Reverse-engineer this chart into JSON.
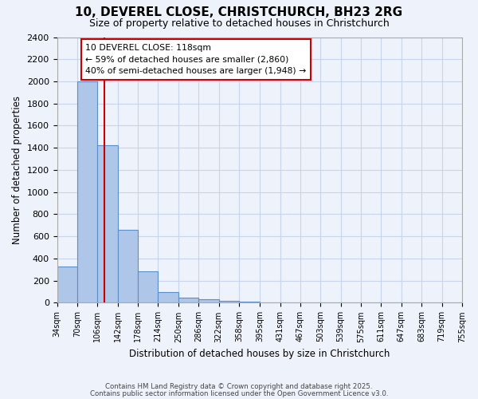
{
  "title": "10, DEVEREL CLOSE, CHRISTCHURCH, BH23 2RG",
  "subtitle": "Size of property relative to detached houses in Christchurch",
  "bar_values": [
    325,
    2000,
    1420,
    660,
    285,
    100,
    45,
    30,
    20,
    10,
    0,
    0,
    0,
    0,
    0,
    0,
    0,
    0,
    0,
    0
  ],
  "bin_edges": [
    34,
    70,
    106,
    142,
    178,
    214,
    250,
    286,
    322,
    358,
    395,
    431,
    467,
    503,
    539,
    575,
    611,
    647,
    683,
    719,
    755
  ],
  "bin_labels": [
    "34sqm",
    "70sqm",
    "106sqm",
    "142sqm",
    "178sqm",
    "214sqm",
    "250sqm",
    "286sqm",
    "322sqm",
    "358sqm",
    "395sqm",
    "431sqm",
    "467sqm",
    "503sqm",
    "539sqm",
    "575sqm",
    "611sqm",
    "647sqm",
    "683sqm",
    "719sqm",
    "755sqm"
  ],
  "bar_color": "#aec6e8",
  "bar_edge_color": "#5b8fc9",
  "vline_x": 118,
  "vline_color": "#cc0000",
  "ylabel": "Number of detached properties",
  "xlabel": "Distribution of detached houses by size in Christchurch",
  "ylim": [
    0,
    2400
  ],
  "yticks": [
    0,
    200,
    400,
    600,
    800,
    1000,
    1200,
    1400,
    1600,
    1800,
    2000,
    2200,
    2400
  ],
  "annotation_title": "10 DEVEREL CLOSE: 118sqm",
  "annotation_line1": "← 59% of detached houses are smaller (2,860)",
  "annotation_line2": "40% of semi-detached houses are larger (1,948) →",
  "background_color": "#eef2fb",
  "grid_color": "#c8d4ee",
  "footer1": "Contains HM Land Registry data © Crown copyright and database right 2025.",
  "footer2": "Contains public sector information licensed under the Open Government Licence v3.0."
}
